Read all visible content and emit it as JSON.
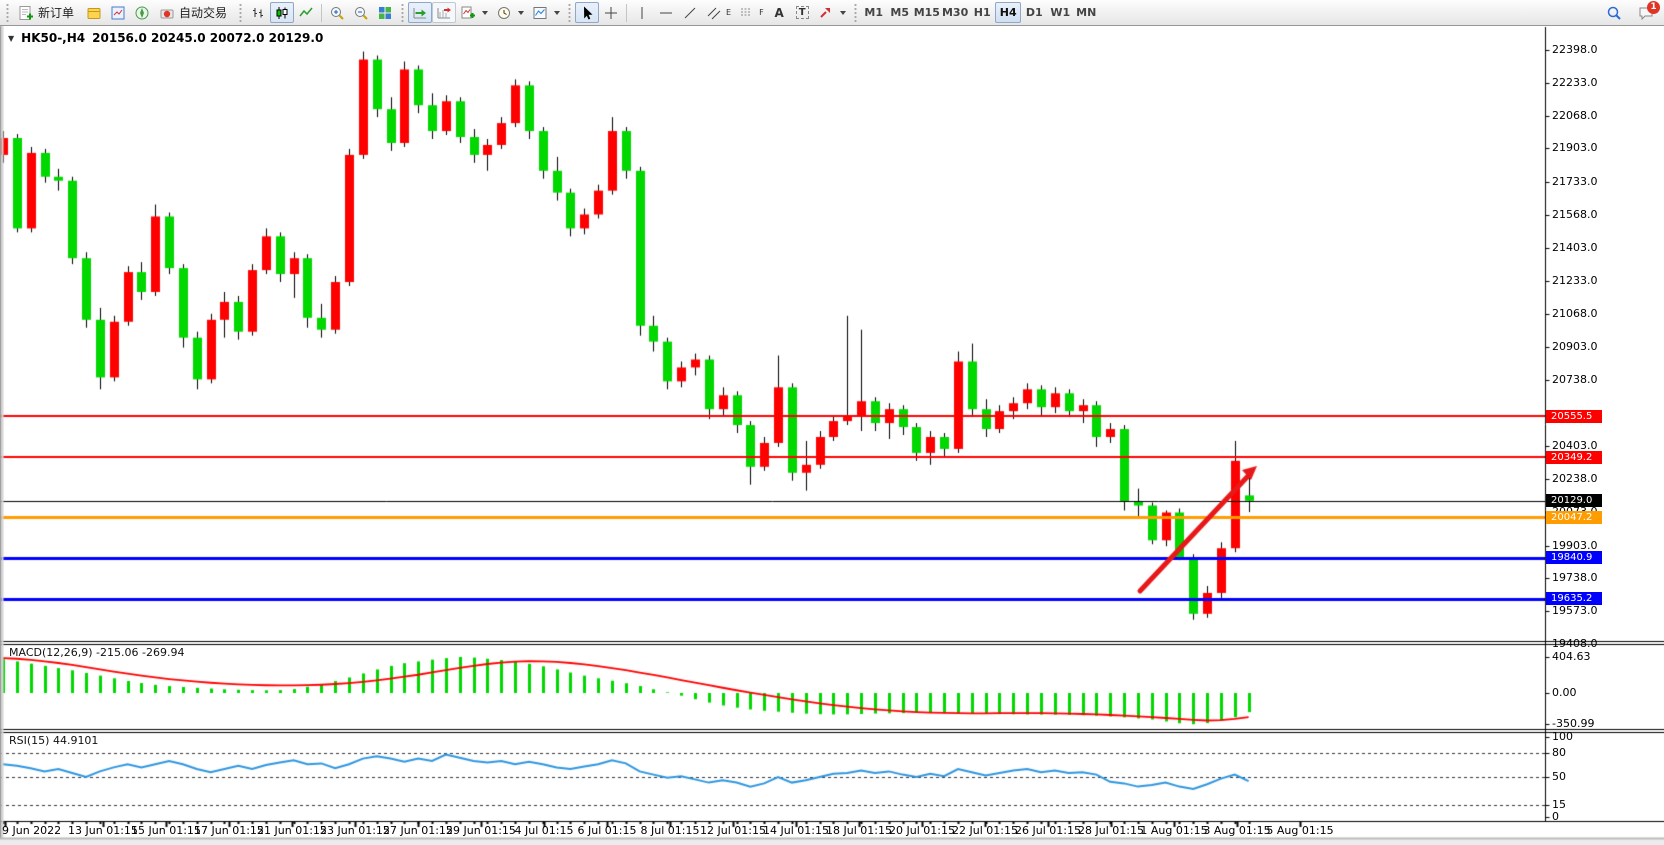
{
  "toolbar": {
    "new_order_label": "新订单",
    "autotrade_label": "自动交易",
    "timeframes": [
      "M1",
      "M5",
      "M15",
      "M30",
      "H1",
      "H4",
      "D1",
      "W1",
      "MN"
    ],
    "active_timeframe": "H4",
    "tool_letter_text": "A",
    "tool_letter_channel": "E",
    "tool_letter_fibo": "F",
    "tool_letter_label": "T",
    "badge_count": "1"
  },
  "chart": {
    "collapse_arrow": "▼",
    "symbol_period": "HK50-,H4",
    "ohlc_readout": "20156.0 20245.0 20072.0 20129.0"
  },
  "chart_data": {
    "type": "candlestick",
    "symbol": "HK50-",
    "timeframe": "H4",
    "colors": {
      "up": "#ff0000",
      "down": "#00d800",
      "wick": "#000000",
      "macd_hist": "#00d800",
      "macd_signal": "#ff0000",
      "rsi_line": "#2f96e0",
      "arrow": "#e81818",
      "level_black": "#000000",
      "level_orange": "#ff9c00",
      "level_blue": "#0000ff"
    },
    "price_axis": {
      "min": 19408,
      "max": 22398,
      "ticks": [
        22398,
        22233,
        22068,
        21903,
        21733,
        21568,
        21403,
        21233,
        21068,
        20903,
        20738,
        20403,
        20238,
        20073,
        19903,
        19738,
        19573,
        19408
      ]
    },
    "levels": [
      {
        "price": 20555.5,
        "color": "#ff0000",
        "lw": 2
      },
      {
        "price": 20349.2,
        "color": "#ff0000",
        "lw": 2
      },
      {
        "price": 20129.0,
        "color": "#000000",
        "lw": 1
      },
      {
        "price": 20047.2,
        "color": "#ff9c00",
        "lw": 3
      },
      {
        "price": 19840.9,
        "color": "#0000ff",
        "lw": 3
      },
      {
        "price": 19635.2,
        "color": "#0000ff",
        "lw": 3
      }
    ],
    "candles": [
      [
        21870,
        21990,
        21830,
        21955
      ],
      [
        21955,
        21975,
        21480,
        21500
      ],
      [
        21500,
        21910,
        21480,
        21880
      ],
      [
        21880,
        21900,
        21730,
        21760
      ],
      [
        21760,
        21800,
        21690,
        21740
      ],
      [
        21740,
        21760,
        21320,
        21350
      ],
      [
        21350,
        21380,
        21000,
        21040
      ],
      [
        21040,
        21100,
        20690,
        20750
      ],
      [
        20750,
        21060,
        20730,
        21030
      ],
      [
        21030,
        21310,
        21010,
        21280
      ],
      [
        21280,
        21330,
        21140,
        21180
      ],
      [
        21180,
        21620,
        21160,
        21560
      ],
      [
        21560,
        21580,
        21270,
        21300
      ],
      [
        21300,
        21320,
        20900,
        20950
      ],
      [
        20950,
        20980,
        20690,
        20740
      ],
      [
        20740,
        21070,
        20720,
        21040
      ],
      [
        21040,
        21180,
        20950,
        21130
      ],
      [
        21130,
        21160,
        20940,
        20980
      ],
      [
        20980,
        21320,
        20960,
        21290
      ],
      [
        21290,
        21500,
        21270,
        21460
      ],
      [
        21460,
        21480,
        21230,
        21270
      ],
      [
        21270,
        21380,
        21150,
        21350
      ],
      [
        21350,
        21370,
        21000,
        21050
      ],
      [
        21050,
        21120,
        20950,
        20990
      ],
      [
        20990,
        21260,
        20970,
        21230
      ],
      [
        21230,
        21900,
        21210,
        21870
      ],
      [
        21870,
        22390,
        21850,
        22350
      ],
      [
        22350,
        22370,
        22060,
        22100
      ],
      [
        22100,
        22160,
        21890,
        21930
      ],
      [
        21930,
        22340,
        21910,
        22300
      ],
      [
        22300,
        22320,
        22080,
        22120
      ],
      [
        22120,
        22180,
        21950,
        21990
      ],
      [
        21990,
        22170,
        21970,
        22140
      ],
      [
        22140,
        22160,
        21930,
        21960
      ],
      [
        21960,
        22000,
        21830,
        21870
      ],
      [
        21870,
        21950,
        21790,
        21920
      ],
      [
        21920,
        22060,
        21900,
        22030
      ],
      [
        22030,
        22250,
        22010,
        22220
      ],
      [
        22220,
        22240,
        21950,
        21990
      ],
      [
        21990,
        22010,
        21750,
        21790
      ],
      [
        21790,
        21860,
        21640,
        21680
      ],
      [
        21680,
        21700,
        21460,
        21500
      ],
      [
        21500,
        21600,
        21470,
        21570
      ],
      [
        21570,
        21720,
        21550,
        21690
      ],
      [
        21690,
        22060,
        21670,
        21990
      ],
      [
        21990,
        22010,
        21750,
        21790
      ],
      [
        21790,
        21810,
        20960,
        21010
      ],
      [
        21010,
        21060,
        20880,
        20930
      ],
      [
        20930,
        20950,
        20690,
        20730
      ],
      [
        20730,
        20830,
        20700,
        20800
      ],
      [
        20800,
        20870,
        20760,
        20840
      ],
      [
        20840,
        20860,
        20540,
        20590
      ],
      [
        20590,
        20700,
        20560,
        20660
      ],
      [
        20660,
        20680,
        20470,
        20510
      ],
      [
        20510,
        20530,
        20210,
        20300
      ],
      [
        20300,
        20450,
        20280,
        20420
      ],
      [
        20420,
        20860,
        20400,
        20700
      ],
      [
        20700,
        20720,
        20230,
        20270
      ],
      [
        20270,
        20430,
        20180,
        20310
      ],
      [
        20310,
        20480,
        20290,
        20450
      ],
      [
        20450,
        20560,
        20430,
        20530
      ],
      [
        20530,
        21060,
        20510,
        20560
      ],
      [
        20560,
        20990,
        20480,
        20630
      ],
      [
        20630,
        20650,
        20480,
        20520
      ],
      [
        20520,
        20620,
        20440,
        20590
      ],
      [
        20590,
        20610,
        20460,
        20500
      ],
      [
        20500,
        20520,
        20330,
        20370
      ],
      [
        20370,
        20480,
        20310,
        20450
      ],
      [
        20450,
        20470,
        20350,
        20390
      ],
      [
        20390,
        20880,
        20370,
        20830
      ],
      [
        20830,
        20920,
        20550,
        20590
      ],
      [
        20590,
        20640,
        20450,
        20490
      ],
      [
        20490,
        20610,
        20470,
        20580
      ],
      [
        20580,
        20650,
        20540,
        20620
      ],
      [
        20620,
        20720,
        20590,
        20690
      ],
      [
        20690,
        20710,
        20560,
        20600
      ],
      [
        20600,
        20700,
        20570,
        20670
      ],
      [
        20670,
        20690,
        20550,
        20580
      ],
      [
        20580,
        20640,
        20520,
        20610
      ],
      [
        20610,
        20630,
        20400,
        20450
      ],
      [
        20450,
        20520,
        20420,
        20490
      ],
      [
        20490,
        20510,
        20080,
        20125
      ],
      [
        20125,
        20190,
        20040,
        20105
      ],
      [
        20105,
        20120,
        19910,
        19930
      ],
      [
        19930,
        20080,
        19900,
        20070
      ],
      [
        20070,
        20090,
        19830,
        19845
      ],
      [
        19845,
        19860,
        19530,
        19560
      ],
      [
        19560,
        19700,
        19540,
        19665
      ],
      [
        19665,
        19920,
        19640,
        19890
      ],
      [
        19890,
        20430,
        19870,
        20330
      ],
      [
        20156,
        20245,
        20072,
        20129
      ]
    ],
    "macd": {
      "label": "MACD(12,26,9)",
      "readout": "-215.06 -269.94",
      "axis": [
        404.63,
        0.0,
        -350.99
      ],
      "histogram": [
        380,
        355,
        330,
        305,
        280,
        255,
        225,
        195,
        165,
        135,
        112,
        92,
        78,
        68,
        58,
        50,
        42,
        36,
        32,
        30,
        32,
        44,
        70,
        100,
        135,
        175,
        220,
        265,
        305,
        335,
        355,
        375,
        392,
        405,
        398,
        385,
        370,
        350,
        328,
        300,
        265,
        230,
        195,
        165,
        138,
        110,
        78,
        42,
        8,
        -30,
        -70,
        -108,
        -140,
        -165,
        -185,
        -200,
        -210,
        -222,
        -232,
        -238,
        -241,
        -240,
        -236,
        -231,
        -228,
        -226,
        -225,
        -226,
        -228,
        -230,
        -232,
        -235,
        -238,
        -240,
        -242,
        -243,
        -244,
        -246,
        -250,
        -256,
        -264,
        -274,
        -286,
        -298,
        -320,
        -340,
        -351,
        -338,
        -308,
        -272,
        -215
      ],
      "signal": [
        393,
        385,
        372,
        356,
        337,
        315,
        291,
        266,
        241,
        217,
        195,
        175,
        157,
        141,
        127,
        115,
        105,
        97,
        91,
        87,
        85,
        85,
        88,
        93,
        101,
        112,
        126,
        143,
        162,
        183,
        205,
        232,
        258,
        283,
        306,
        326,
        342,
        353,
        358,
        356,
        349,
        337,
        321,
        302,
        280,
        256,
        230,
        203,
        175,
        146,
        117,
        88,
        59,
        31,
        4,
        -22,
        -47,
        -71,
        -94,
        -116,
        -136,
        -154,
        -170,
        -184,
        -196,
        -206,
        -214,
        -220,
        -224,
        -227,
        -228,
        -228,
        -227,
        -226,
        -226,
        -227,
        -229,
        -232,
        -236,
        -241,
        -247,
        -254,
        -262,
        -271,
        -281,
        -291,
        -301,
        -309,
        -306,
        -290,
        -270
      ]
    },
    "rsi": {
      "label": "RSI(15) 44.9101",
      "axis": [
        100,
        80,
        50,
        15,
        0
      ],
      "guide_levels": [
        80,
        50,
        15
      ],
      "values": [
        66,
        64,
        61,
        57,
        60,
        55,
        50,
        57,
        62,
        66,
        62,
        66,
        70,
        66,
        60,
        56,
        60,
        64,
        60,
        65,
        68,
        71,
        66,
        67,
        61,
        66,
        73,
        76,
        73,
        69,
        73,
        70,
        78,
        74,
        70,
        68,
        70,
        66,
        69,
        66,
        62,
        60,
        63,
        66,
        71,
        67,
        57,
        53,
        49,
        51,
        47,
        43,
        46,
        43,
        38,
        42,
        50,
        43,
        46,
        50,
        54,
        55,
        58,
        55,
        57,
        53,
        50,
        54,
        51,
        60,
        56,
        52,
        55,
        58,
        60,
        56,
        58,
        55,
        56,
        53,
        44,
        42,
        38,
        40,
        43,
        38,
        35,
        41,
        48,
        53,
        44.91
      ]
    },
    "date_axis": [
      "9 Jun 2022",
      "13 Jun 01:15",
      "15 Jun 01:15",
      "17 Jun 01:15",
      "21 Jun 01:15",
      "23 Jun 01:15",
      "27 Jun 01:15",
      "29 Jun 01:15",
      "4 Jul 01:15",
      "6 Jul 01:15",
      "8 Jul 01:15",
      "12 Jul 01:15",
      "14 Jul 01:15",
      "18 Jul 01:15",
      "20 Jul 01:15",
      "22 Jul 01:15",
      "26 Jul 01:15",
      "28 Jul 01:15",
      "1 Aug 01:15",
      "3 Aug 01:15",
      "5 Aug 01:15"
    ],
    "trend_arrow": {
      "from": [
        1140,
        591
      ],
      "to": [
        1257,
        466
      ]
    }
  }
}
